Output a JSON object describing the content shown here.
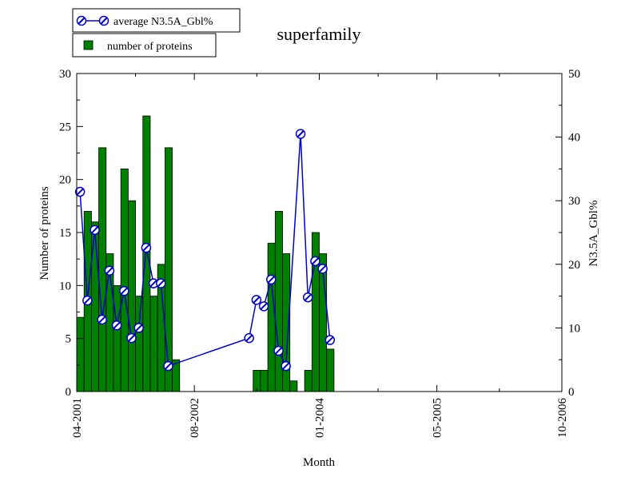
{
  "chart_data": {
    "type": "bar",
    "title": "superfamily",
    "xlabel": "Month",
    "ylabel": "Number of proteins",
    "y2label": "N3.5A_Gbl%",
    "x_ticks": [
      "04-2001",
      "08-2002",
      "01-2004",
      "05-2005",
      "10-2006"
    ],
    "xlim": [
      "04-2001",
      "10-2006"
    ],
    "ylim": [
      0,
      30
    ],
    "y_ticks": [
      "0",
      "5",
      "10",
      "15",
      "20",
      "25",
      "30"
    ],
    "y2lim": [
      0,
      50
    ],
    "y2_ticks": [
      "0",
      "10",
      "20",
      "30",
      "40",
      "50"
    ],
    "legend_position": "top-left",
    "colors": {
      "bars": "#008000",
      "line": "#0000cc"
    },
    "series": [
      {
        "name": "number of proteins",
        "kind": "bar",
        "axis": "left",
        "x": [
          "04-2001",
          "05-2001",
          "06-2001",
          "07-2001",
          "08-2001",
          "09-2001",
          "10-2001",
          "11-2001",
          "12-2001",
          "01-2002",
          "02-2002",
          "03-2002",
          "04-2002",
          "05-2002",
          "04-2003",
          "05-2003",
          "06-2003",
          "07-2003",
          "08-2003",
          "09-2003",
          "11-2003",
          "12-2003",
          "01-2004",
          "02-2004"
        ],
        "values": [
          7,
          17,
          16,
          23,
          13,
          10,
          21,
          18,
          9,
          26,
          9,
          12,
          23,
          3,
          2,
          2,
          14,
          17,
          13,
          1,
          2,
          15,
          13,
          4
        ]
      },
      {
        "name": "average N3.5A_Gbl%",
        "kind": "line",
        "axis": "right",
        "x": [
          "04-2001",
          "05-2001",
          "06-2001",
          "07-2001",
          "08-2001",
          "09-2001",
          "10-2001",
          "11-2001",
          "12-2001",
          "01-2002",
          "02-2002",
          "03-2002",
          "04-2002",
          "03-2003",
          "04-2003",
          "05-2003",
          "06-2003",
          "07-2003",
          "08-2003",
          "10-2003",
          "11-2003",
          "12-2003",
          "01-2004",
          "02-2004"
        ],
        "values": [
          31.4,
          14.3,
          25.4,
          11.3,
          19.0,
          10.4,
          15.8,
          8.4,
          10.0,
          22.6,
          17.0,
          17.0,
          4.0,
          8.4,
          14.4,
          13.4,
          17.6,
          6.4,
          4.0,
          40.5,
          14.8,
          20.5,
          19.3,
          8.1
        ]
      }
    ]
  }
}
